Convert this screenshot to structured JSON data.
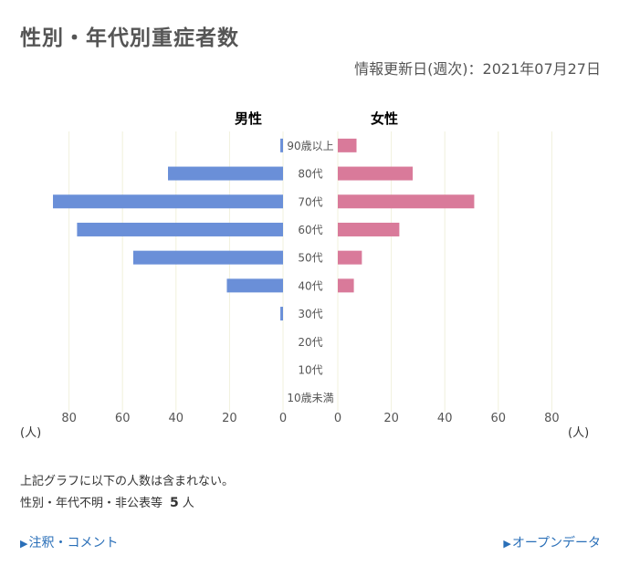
{
  "page": {
    "title": "性別・年代別重症者数",
    "update_info": "情報更新日(週次)：2021年07月27日"
  },
  "chart_data": {
    "type": "bar",
    "orientation": "horizontal-population-pyramid",
    "categories": [
      "90歳以上",
      "80代",
      "70代",
      "60代",
      "50代",
      "40代",
      "30代",
      "20代",
      "10代",
      "10歳未満"
    ],
    "series": [
      {
        "name": "男性",
        "values": [
          1,
          43,
          86,
          77,
          56,
          21,
          1,
          0,
          0,
          0
        ]
      },
      {
        "name": "女性",
        "values": [
          7,
          28,
          51,
          23,
          9,
          6,
          0,
          0,
          0,
          0
        ]
      }
    ],
    "xlim": [
      0,
      80
    ],
    "ticks": [
      "80",
      "60",
      "40",
      "20",
      "0"
    ],
    "tick_values": [
      80,
      60,
      40,
      20,
      0
    ],
    "unit_label": "(人)",
    "colors": {
      "male": "#6a8fd8",
      "female": "#d97a9a",
      "grid": "#f1f1dc"
    },
    "grid": true
  },
  "notes": {
    "line1": "上記グラフに以下の人数は含まれない。",
    "line2_label": "性別・年代不明・非公表等",
    "line2_value": "5",
    "line2_unit": "人"
  },
  "links": {
    "arrow": "▶",
    "comments": "注釈・コメント",
    "open_data": "オープンデータ"
  }
}
